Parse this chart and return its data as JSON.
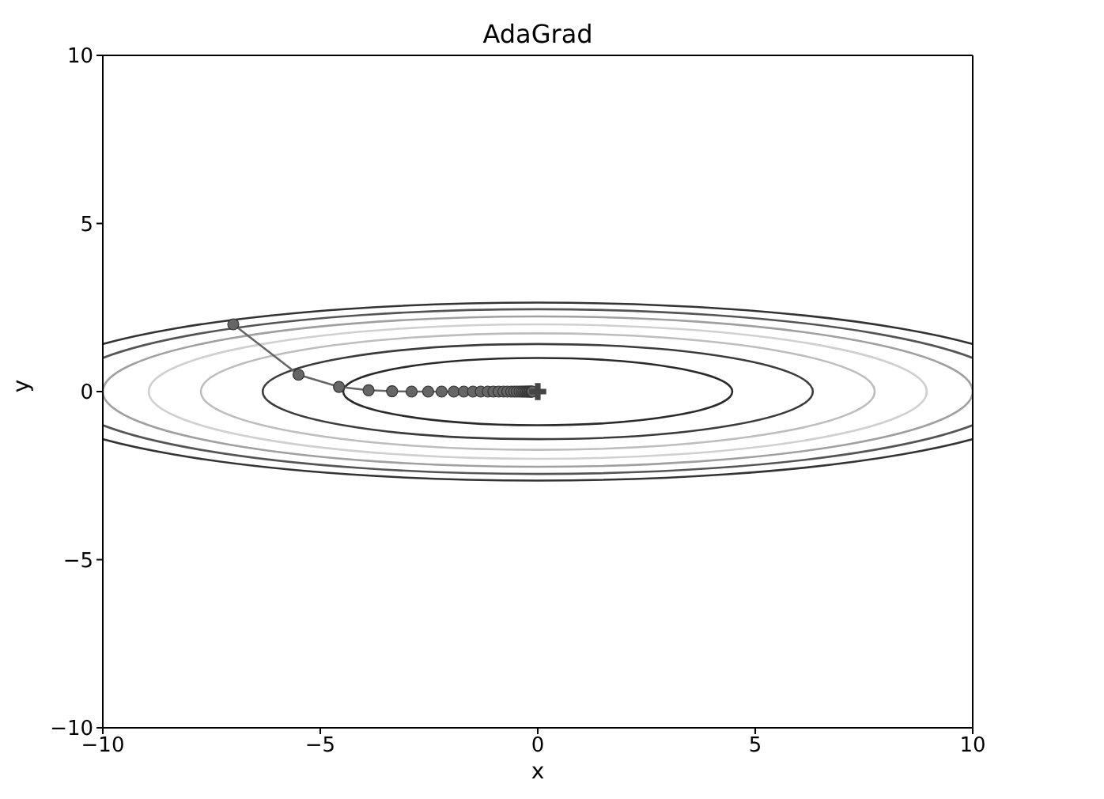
{
  "chart_data": {
    "type": "line",
    "title": "AdaGrad",
    "xlabel": "x",
    "ylabel": "y",
    "xlim": [
      -10,
      10
    ],
    "ylim": [
      -10,
      10
    ],
    "xticks": [
      {
        "value": -10,
        "label": "−10"
      },
      {
        "value": -5,
        "label": "−5"
      },
      0,
      5,
      10
    ],
    "yticks": [
      {
        "value": -10,
        "label": "−10"
      },
      {
        "value": -5,
        "label": "−5"
      },
      0,
      5,
      10
    ],
    "grid": false,
    "legend": false,
    "marker": "circle",
    "line_style": "solid",
    "series": [
      {
        "color": "#666666",
        "x": [
          -7,
          -5.5,
          -4.57,
          -3.89,
          -3.35,
          -2.9,
          -2.52,
          -2.21,
          -1.93,
          -1.7,
          -1.49,
          -1.31,
          -1.15,
          -1.02,
          -0.9,
          -0.79,
          -0.7,
          -0.61,
          -0.54,
          -0.48,
          -0.42,
          -0.37,
          -0.33,
          -0.29,
          -0.26,
          -0.23,
          -0.2,
          -0.18,
          -0.15,
          -0.14,
          -0.12
        ],
        "values": [
          2,
          0.5,
          0.14,
          0.04,
          0.01,
          0,
          0,
          0,
          0,
          0,
          0,
          0,
          0,
          0,
          0,
          0,
          0,
          0,
          0,
          0,
          0,
          0,
          0,
          0,
          0,
          0,
          0,
          0,
          0,
          0,
          0
        ]
      },
      {
        "type": "scatter",
        "color": "#444444",
        "marker": "cross",
        "x": [
          0
        ],
        "values": [
          0
        ]
      }
    ]
  }
}
